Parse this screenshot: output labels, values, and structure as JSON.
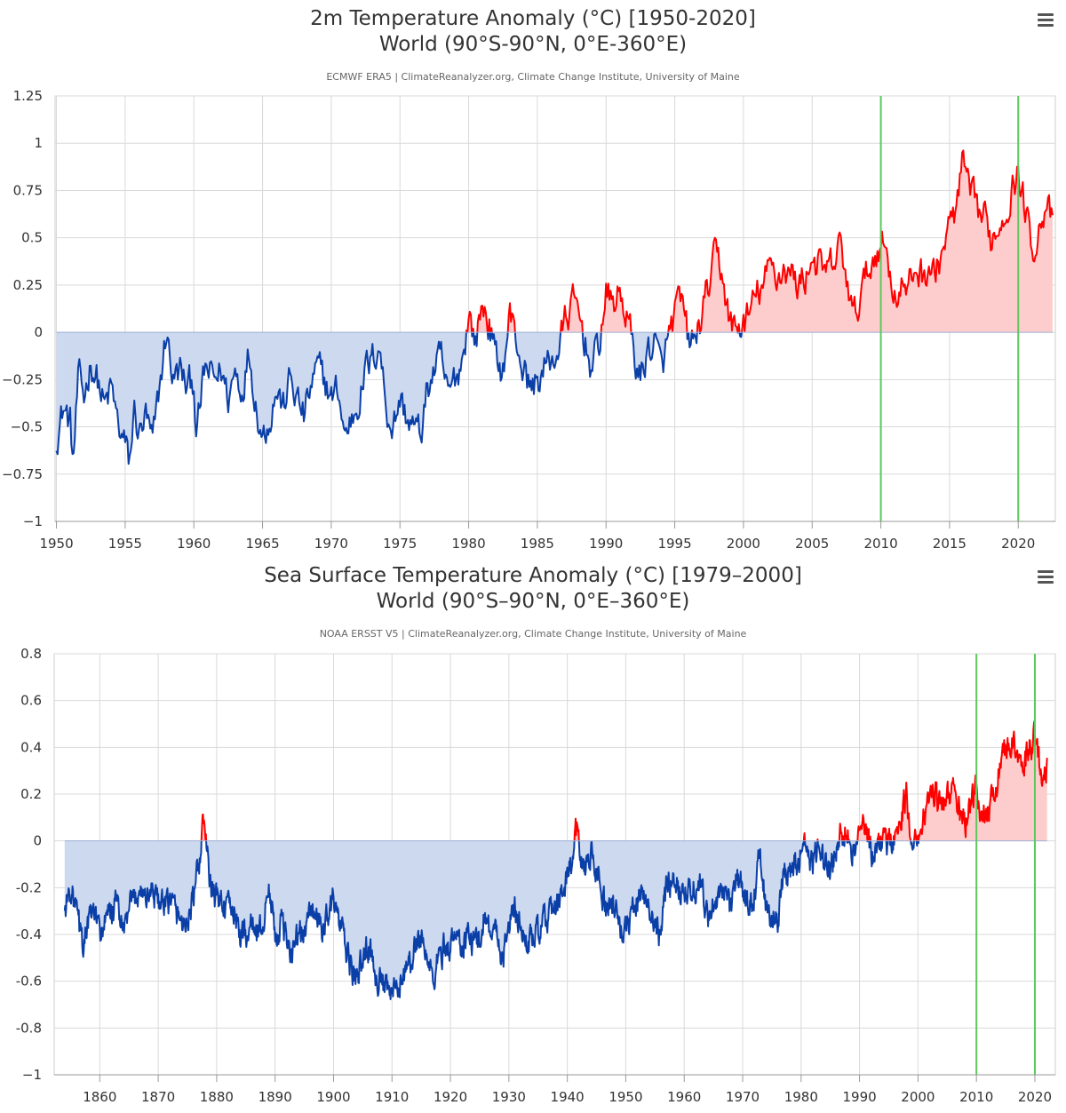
{
  "chart_data": [
    {
      "type": "area",
      "title_line1": "2m Temperature Anomaly (°C) [1950-2020]",
      "title_line2": "World (90°S-90°N, 0°E-360°E)",
      "subtitle": "ECMWF ERA5 | ClimateReanalyzer.org, Climate Change Institute, University of Maine",
      "xlim": [
        1949.9,
        2022.7
      ],
      "ylim": [
        -1,
        1.25
      ],
      "x_ticks": [
        1950,
        1955,
        1960,
        1965,
        1970,
        1975,
        1980,
        1985,
        1990,
        1995,
        2000,
        2005,
        2010,
        2015,
        2020
      ],
      "y_ticks": [
        -1,
        -0.75,
        -0.5,
        -0.25,
        0,
        0.25,
        0.5,
        0.75,
        1,
        1.25
      ],
      "y_tick_labels": [
        "−1",
        "−0.75",
        "−0.5",
        "−0.25",
        "0",
        "0.25",
        "0.5",
        "0.75",
        "1",
        "1.25"
      ],
      "x_start": 1950.0,
      "x_end": 2022.5,
      "vertical_markers": [
        2010,
        2020
      ],
      "colors": {
        "positive_line": "#ff0000",
        "negative_line": "#0b3fa8",
        "positive_fill": "#fdcccc",
        "negative_fill": "#cdd9ee",
        "marker": "#5cc85c",
        "grid": "#d9d9d9"
      },
      "anchors": [
        [
          1950.0,
          -0.55
        ],
        [
          1950.5,
          -0.4
        ],
        [
          1951.0,
          -0.48
        ],
        [
          1951.2,
          -0.7
        ],
        [
          1951.6,
          -0.25
        ],
        [
          1952.0,
          -0.35
        ],
        [
          1952.5,
          -0.15
        ],
        [
          1953.0,
          -0.25
        ],
        [
          1953.5,
          -0.4
        ],
        [
          1954.0,
          -0.3
        ],
        [
          1954.5,
          -0.5
        ],
        [
          1955.0,
          -0.6
        ],
        [
          1955.3,
          -0.7
        ],
        [
          1955.7,
          -0.4
        ],
        [
          1956.0,
          -0.55
        ],
        [
          1956.5,
          -0.45
        ],
        [
          1957.0,
          -0.6
        ],
        [
          1957.5,
          -0.3
        ],
        [
          1958.0,
          0.0
        ],
        [
          1958.5,
          -0.25
        ],
        [
          1959.0,
          -0.2
        ],
        [
          1959.5,
          -0.3
        ],
        [
          1960.0,
          -0.25
        ],
        [
          1960.2,
          -0.55
        ],
        [
          1960.8,
          -0.2
        ],
        [
          1961.5,
          -0.25
        ],
        [
          1962.0,
          -0.2
        ],
        [
          1962.5,
          -0.35
        ],
        [
          1963.0,
          -0.2
        ],
        [
          1963.5,
          -0.3
        ],
        [
          1964.0,
          -0.1
        ],
        [
          1964.5,
          -0.35
        ],
        [
          1965.0,
          -0.55
        ],
        [
          1965.5,
          -0.45
        ],
        [
          1966.0,
          -0.3
        ],
        [
          1966.5,
          -0.4
        ],
        [
          1967.0,
          -0.25
        ],
        [
          1967.5,
          -0.35
        ],
        [
          1968.0,
          -0.45
        ],
        [
          1968.5,
          -0.3
        ],
        [
          1969.0,
          -0.2
        ],
        [
          1969.5,
          -0.25
        ],
        [
          1970.0,
          -0.35
        ],
        [
          1970.5,
          -0.3
        ],
        [
          1971.0,
          -0.55
        ],
        [
          1971.5,
          -0.45
        ],
        [
          1972.0,
          -0.35
        ],
        [
          1972.5,
          -0.2
        ],
        [
          1973.0,
          -0.15
        ],
        [
          1973.5,
          -0.05
        ],
        [
          1974.0,
          -0.4
        ],
        [
          1974.5,
          -0.5
        ],
        [
          1975.0,
          -0.35
        ],
        [
          1975.5,
          -0.45
        ],
        [
          1976.0,
          -0.5
        ],
        [
          1976.5,
          -0.55
        ],
        [
          1977.0,
          -0.3
        ],
        [
          1977.5,
          -0.2
        ],
        [
          1978.0,
          -0.15
        ],
        [
          1978.5,
          -0.35
        ],
        [
          1979.0,
          -0.25
        ],
        [
          1979.5,
          -0.15
        ],
        [
          1980.0,
          0.1
        ],
        [
          1980.5,
          -0.05
        ],
        [
          1981.0,
          0.15
        ],
        [
          1981.5,
          0.05
        ],
        [
          1982.0,
          -0.15
        ],
        [
          1982.5,
          -0.2
        ],
        [
          1983.0,
          0.1
        ],
        [
          1983.5,
          -0.05
        ],
        [
          1984.0,
          -0.2
        ],
        [
          1984.5,
          -0.3
        ],
        [
          1985.0,
          -0.25
        ],
        [
          1985.5,
          -0.2
        ],
        [
          1986.0,
          -0.15
        ],
        [
          1986.5,
          -0.1
        ],
        [
          1987.0,
          0.05
        ],
        [
          1987.5,
          0.15
        ],
        [
          1988.0,
          0.1
        ],
        [
          1988.5,
          -0.05
        ],
        [
          1989.0,
          -0.2
        ],
        [
          1989.5,
          -0.05
        ],
        [
          1990.0,
          0.2
        ],
        [
          1990.5,
          0.15
        ],
        [
          1991.0,
          0.2
        ],
        [
          1991.5,
          0.1
        ],
        [
          1992.0,
          -0.1
        ],
        [
          1992.5,
          -0.25
        ],
        [
          1993.0,
          -0.1
        ],
        [
          1993.5,
          -0.05
        ],
        [
          1994.0,
          -0.2
        ],
        [
          1994.5,
          -0.05
        ],
        [
          1995.0,
          0.1
        ],
        [
          1995.5,
          0.15
        ],
        [
          1996.0,
          -0.05
        ],
        [
          1996.5,
          -0.05
        ],
        [
          1997.0,
          0.1
        ],
        [
          1997.5,
          0.25
        ],
        [
          1998.0,
          0.4
        ],
        [
          1998.5,
          0.3
        ],
        [
          1999.0,
          0.05
        ],
        [
          1999.5,
          0.0
        ],
        [
          2000.0,
          0.05
        ],
        [
          2000.5,
          0.1
        ],
        [
          2001.0,
          0.2
        ],
        [
          2001.5,
          0.25
        ],
        [
          2002.0,
          0.35
        ],
        [
          2002.5,
          0.3
        ],
        [
          2003.0,
          0.35
        ],
        [
          2003.5,
          0.3
        ],
        [
          2004.0,
          0.25
        ],
        [
          2004.5,
          0.3
        ],
        [
          2005.0,
          0.4
        ],
        [
          2005.5,
          0.35
        ],
        [
          2006.0,
          0.3
        ],
        [
          2006.5,
          0.35
        ],
        [
          2007.0,
          0.45
        ],
        [
          2007.5,
          0.3
        ],
        [
          2008.0,
          0.05
        ],
        [
          2008.5,
          0.2
        ],
        [
          2009.0,
          0.3
        ],
        [
          2009.5,
          0.4
        ],
        [
          2010.0,
          0.5
        ],
        [
          2010.5,
          0.4
        ],
        [
          2011.0,
          0.2
        ],
        [
          2011.5,
          0.25
        ],
        [
          2012.0,
          0.2
        ],
        [
          2012.5,
          0.35
        ],
        [
          2013.0,
          0.3
        ],
        [
          2013.5,
          0.35
        ],
        [
          2014.0,
          0.3
        ],
        [
          2014.5,
          0.45
        ],
        [
          2015.0,
          0.55
        ],
        [
          2015.5,
          0.65
        ],
        [
          2016.0,
          0.9
        ],
        [
          2016.5,
          0.7
        ],
        [
          2017.0,
          0.65
        ],
        [
          2017.5,
          0.6
        ],
        [
          2018.0,
          0.5
        ],
        [
          2018.5,
          0.55
        ],
        [
          2019.0,
          0.65
        ],
        [
          2019.5,
          0.75
        ],
        [
          2020.0,
          0.85
        ],
        [
          2020.5,
          0.65
        ],
        [
          2021.0,
          0.45
        ],
        [
          2021.5,
          0.55
        ],
        [
          2022.0,
          0.7
        ],
        [
          2022.5,
          0.55
        ]
      ]
    },
    {
      "type": "area",
      "title_line1": "Sea Surface Temperature Anomaly (°C) [1979–2000]",
      "title_line2": "World (90°S–90°N, 0°E–360°E)",
      "subtitle": "NOAA ERSST V5 | ClimateReanalyzer.org, Climate Change Institute, University of Maine",
      "xlim": [
        1852.2,
        2023.5
      ],
      "ylim": [
        -1,
        0.8
      ],
      "x_ticks": [
        1860,
        1870,
        1880,
        1890,
        1900,
        1910,
        1920,
        1930,
        1940,
        1950,
        1960,
        1970,
        1980,
        1990,
        2000,
        2010,
        2020
      ],
      "y_ticks": [
        -1,
        -0.8,
        -0.6,
        -0.4,
        -0.2,
        0,
        0.2,
        0.4,
        0.6,
        0.8
      ],
      "y_tick_labels": [
        "−1",
        "-0.8",
        "-0.6",
        "-0.4",
        "-0.2",
        "0",
        "0.2",
        "0.4",
        "0.6",
        "0.8"
      ],
      "x_start": 1854.0,
      "x_end": 2022.1,
      "vertical_markers": [
        2010,
        2020
      ],
      "colors": {
        "positive_line": "#ff0000",
        "negative_line": "#0b3fa8",
        "positive_fill": "#fdcccc",
        "negative_fill": "#cdd9ee",
        "marker": "#5cc85c",
        "grid": "#d9d9d9"
      },
      "anchors": [
        [
          1854.0,
          -0.3
        ],
        [
          1855.0,
          -0.2
        ],
        [
          1856.0,
          -0.3
        ],
        [
          1857.0,
          -0.45
        ],
        [
          1858.0,
          -0.35
        ],
        [
          1859.0,
          -0.3
        ],
        [
          1860.0,
          -0.4
        ],
        [
          1861.0,
          -0.35
        ],
        [
          1862.0,
          -0.3
        ],
        [
          1863.0,
          -0.25
        ],
        [
          1864.0,
          -0.4
        ],
        [
          1865.0,
          -0.3
        ],
        [
          1866.0,
          -0.25
        ],
        [
          1867.0,
          -0.2
        ],
        [
          1868.0,
          -0.25
        ],
        [
          1869.0,
          -0.2
        ],
        [
          1870.0,
          -0.25
        ],
        [
          1871.0,
          -0.3
        ],
        [
          1872.0,
          -0.25
        ],
        [
          1873.0,
          -0.3
        ],
        [
          1874.0,
          -0.35
        ],
        [
          1875.0,
          -0.35
        ],
        [
          1876.0,
          -0.25
        ],
        [
          1877.0,
          -0.1
        ],
        [
          1877.8,
          0.1
        ],
        [
          1878.5,
          -0.1
        ],
        [
          1879.0,
          -0.2
        ],
        [
          1880.0,
          -0.25
        ],
        [
          1881.0,
          -0.25
        ],
        [
          1882.0,
          -0.3
        ],
        [
          1883.0,
          -0.3
        ],
        [
          1884.0,
          -0.4
        ],
        [
          1885.0,
          -0.4
        ],
        [
          1886.0,
          -0.35
        ],
        [
          1887.0,
          -0.4
        ],
        [
          1888.0,
          -0.35
        ],
        [
          1889.0,
          -0.2
        ],
        [
          1890.0,
          -0.4
        ],
        [
          1891.0,
          -0.35
        ],
        [
          1892.0,
          -0.45
        ],
        [
          1893.0,
          -0.45
        ],
        [
          1894.0,
          -0.4
        ],
        [
          1895.0,
          -0.4
        ],
        [
          1896.0,
          -0.3
        ],
        [
          1897.0,
          -0.3
        ],
        [
          1898.0,
          -0.4
        ],
        [
          1899.0,
          -0.3
        ],
        [
          1900.0,
          -0.25
        ],
        [
          1901.0,
          -0.35
        ],
        [
          1902.0,
          -0.45
        ],
        [
          1903.0,
          -0.55
        ],
        [
          1904.0,
          -0.6
        ],
        [
          1905.0,
          -0.5
        ],
        [
          1906.0,
          -0.45
        ],
        [
          1907.0,
          -0.55
        ],
        [
          1908.0,
          -0.6
        ],
        [
          1909.0,
          -0.65
        ],
        [
          1910.0,
          -0.65
        ],
        [
          1911.0,
          -0.65
        ],
        [
          1912.0,
          -0.55
        ],
        [
          1913.0,
          -0.55
        ],
        [
          1914.0,
          -0.45
        ],
        [
          1915.0,
          -0.4
        ],
        [
          1916.0,
          -0.5
        ],
        [
          1917.0,
          -0.6
        ],
        [
          1918.0,
          -0.5
        ],
        [
          1919.0,
          -0.45
        ],
        [
          1920.0,
          -0.45
        ],
        [
          1921.0,
          -0.4
        ],
        [
          1922.0,
          -0.45
        ],
        [
          1923.0,
          -0.4
        ],
        [
          1924.0,
          -0.45
        ],
        [
          1925.0,
          -0.4
        ],
        [
          1926.0,
          -0.3
        ],
        [
          1927.0,
          -0.4
        ],
        [
          1928.0,
          -0.4
        ],
        [
          1929.0,
          -0.5
        ],
        [
          1930.0,
          -0.35
        ],
        [
          1931.0,
          -0.3
        ],
        [
          1932.0,
          -0.35
        ],
        [
          1933.0,
          -0.45
        ],
        [
          1934.0,
          -0.4
        ],
        [
          1935.0,
          -0.4
        ],
        [
          1936.0,
          -0.35
        ],
        [
          1937.0,
          -0.3
        ],
        [
          1938.0,
          -0.3
        ],
        [
          1939.0,
          -0.25
        ],
        [
          1940.0,
          -0.15
        ],
        [
          1941.0,
          -0.05
        ],
        [
          1941.8,
          0.08
        ],
        [
          1942.5,
          -0.1
        ],
        [
          1943.0,
          -0.1
        ],
        [
          1944.0,
          -0.05
        ],
        [
          1945.0,
          -0.1
        ],
        [
          1946.0,
          -0.25
        ],
        [
          1947.0,
          -0.3
        ],
        [
          1948.0,
          -0.3
        ],
        [
          1949.0,
          -0.35
        ],
        [
          1950.0,
          -0.4
        ],
        [
          1951.0,
          -0.3
        ],
        [
          1952.0,
          -0.25
        ],
        [
          1953.0,
          -0.2
        ],
        [
          1954.0,
          -0.3
        ],
        [
          1955.0,
          -0.35
        ],
        [
          1956.0,
          -0.4
        ],
        [
          1957.0,
          -0.2
        ],
        [
          1958.0,
          -0.15
        ],
        [
          1959.0,
          -0.2
        ],
        [
          1960.0,
          -0.2
        ],
        [
          1961.0,
          -0.2
        ],
        [
          1962.0,
          -0.2
        ],
        [
          1963.0,
          -0.2
        ],
        [
          1964.0,
          -0.35
        ],
        [
          1965.0,
          -0.25
        ],
        [
          1966.0,
          -0.25
        ],
        [
          1967.0,
          -0.25
        ],
        [
          1968.0,
          -0.3
        ],
        [
          1969.0,
          -0.15
        ],
        [
          1970.0,
          -0.2
        ],
        [
          1971.0,
          -0.3
        ],
        [
          1972.0,
          -0.2
        ],
        [
          1973.0,
          -0.05
        ],
        [
          1974.0,
          -0.3
        ],
        [
          1975.0,
          -0.3
        ],
        [
          1976.0,
          -0.35
        ],
        [
          1977.0,
          -0.15
        ],
        [
          1978.0,
          -0.15
        ],
        [
          1979.0,
          -0.1
        ],
        [
          1980.0,
          -0.05
        ],
        [
          1981.0,
          -0.05
        ],
        [
          1982.0,
          -0.1
        ],
        [
          1983.0,
          0.0
        ],
        [
          1984.0,
          -0.1
        ],
        [
          1985.0,
          -0.1
        ],
        [
          1986.0,
          -0.05
        ],
        [
          1987.0,
          0.05
        ],
        [
          1988.0,
          0.05
        ],
        [
          1989.0,
          -0.05
        ],
        [
          1990.0,
          0.05
        ],
        [
          1991.0,
          0.05
        ],
        [
          1992.0,
          -0.05
        ],
        [
          1993.0,
          -0.05
        ],
        [
          1994.0,
          0.0
        ],
        [
          1995.0,
          0.0
        ],
        [
          1996.0,
          0.0
        ],
        [
          1997.0,
          0.1
        ],
        [
          1998.0,
          0.2
        ],
        [
          1999.0,
          0.0
        ],
        [
          2000.0,
          -0.05
        ],
        [
          2001.0,
          0.1
        ],
        [
          2002.0,
          0.15
        ],
        [
          2003.0,
          0.2
        ],
        [
          2004.0,
          0.15
        ],
        [
          2005.0,
          0.2
        ],
        [
          2006.0,
          0.2
        ],
        [
          2007.0,
          0.15
        ],
        [
          2008.0,
          0.05
        ],
        [
          2009.0,
          0.15
        ],
        [
          2010.0,
          0.25
        ],
        [
          2011.0,
          0.1
        ],
        [
          2012.0,
          0.15
        ],
        [
          2013.0,
          0.2
        ],
        [
          2014.0,
          0.3
        ],
        [
          2015.0,
          0.4
        ],
        [
          2016.0,
          0.45
        ],
        [
          2017.0,
          0.35
        ],
        [
          2018.0,
          0.3
        ],
        [
          2019.0,
          0.4
        ],
        [
          2020.0,
          0.45
        ],
        [
          2021.0,
          0.3
        ],
        [
          2022.0,
          0.3
        ]
      ]
    }
  ]
}
